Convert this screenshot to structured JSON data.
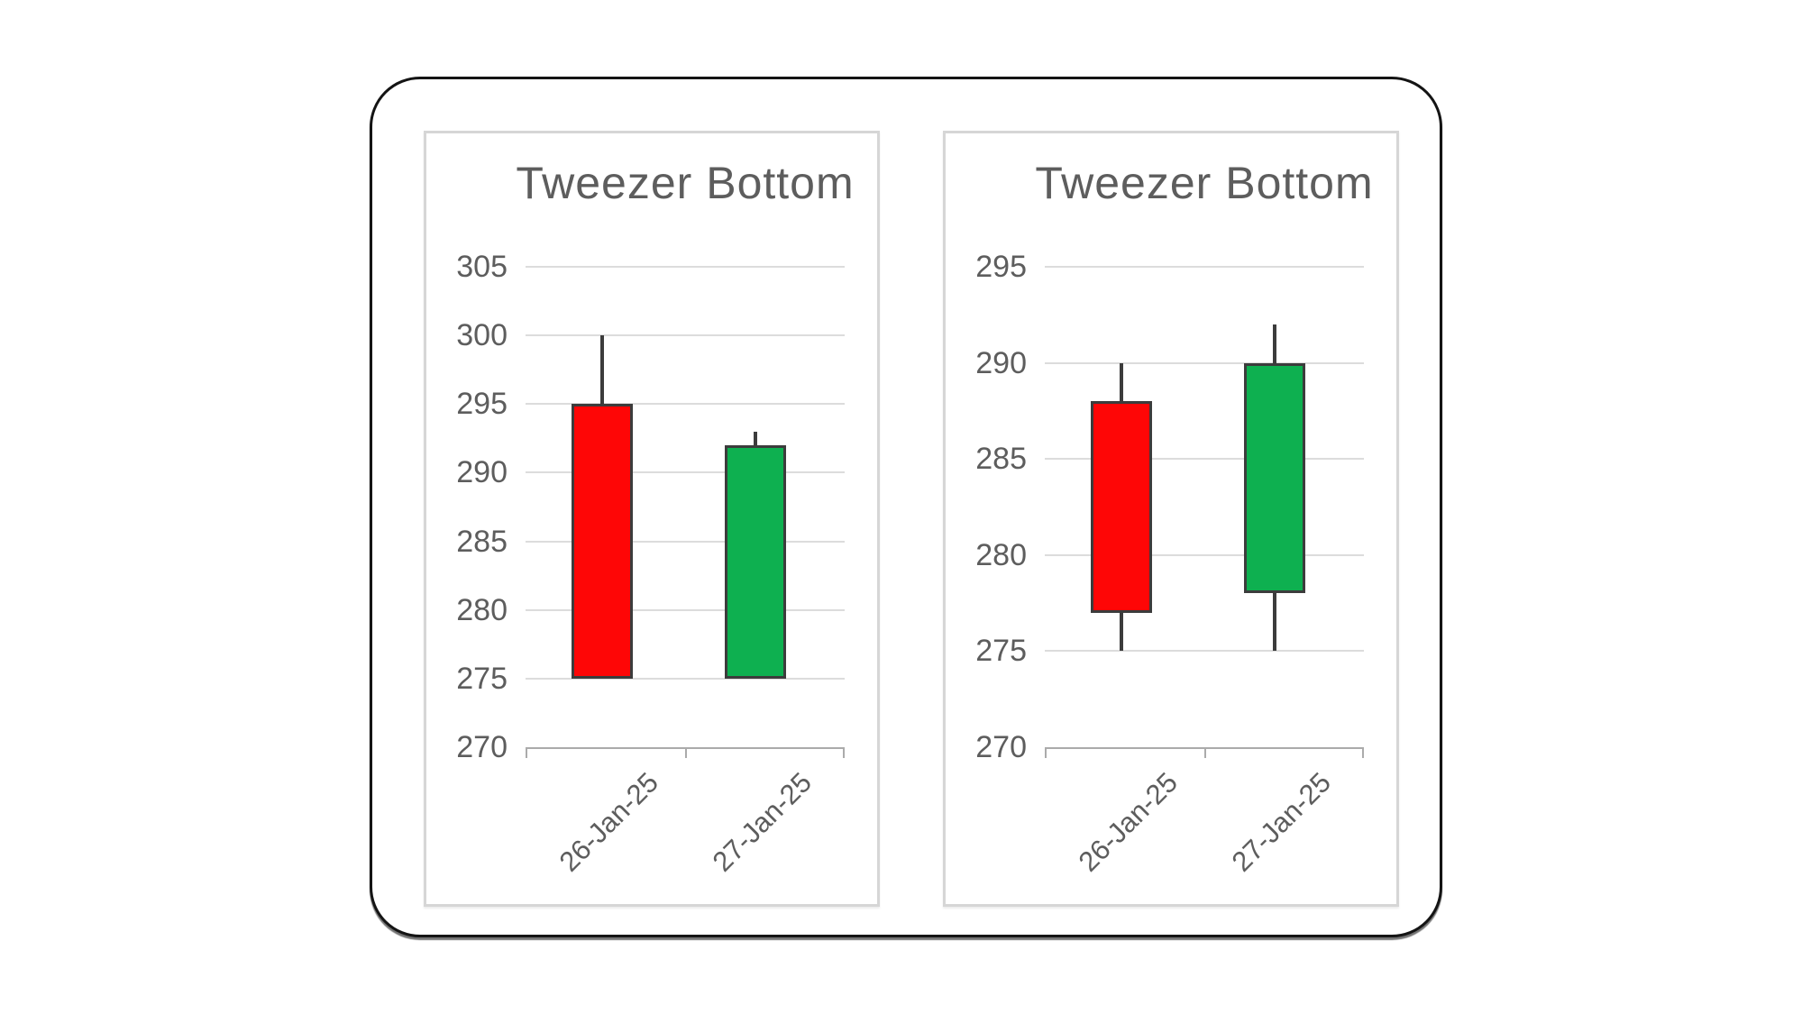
{
  "colors": {
    "bullish": "#0eb050",
    "bearish": "#fe0606",
    "candle_border": "#3c3c3c",
    "gridline": "#dcdcdc",
    "axis": "#ababab",
    "text": "#5d5d5d",
    "card_border": "#141414",
    "panel_border": "#d6d6d6",
    "background": "#ffffff"
  },
  "chart_data": [
    {
      "type": "candlestick",
      "title": "Tweezer Bottom",
      "categories": [
        "26-Jan-25",
        "27-Jan-25"
      ],
      "yticks": [
        305,
        300,
        295,
        290,
        285,
        280,
        275,
        270
      ],
      "ylim": [
        270,
        305
      ],
      "grid": true,
      "candles": [
        {
          "date": "26-Jan-25",
          "open": 295,
          "high": 300,
          "low": 275,
          "close": 275,
          "direction": "bearish"
        },
        {
          "date": "27-Jan-25",
          "open": 275,
          "high": 293,
          "low": 275,
          "close": 292,
          "direction": "bullish"
        }
      ]
    },
    {
      "type": "candlestick",
      "title": "Tweezer Bottom",
      "categories": [
        "26-Jan-25",
        "27-Jan-25"
      ],
      "yticks": [
        295,
        290,
        285,
        280,
        275,
        270
      ],
      "ylim": [
        270,
        295
      ],
      "grid": true,
      "candles": [
        {
          "date": "26-Jan-25",
          "open": 288,
          "high": 290,
          "low": 275,
          "close": 277,
          "direction": "bearish"
        },
        {
          "date": "27-Jan-25",
          "open": 278,
          "high": 292,
          "low": 275,
          "close": 290,
          "direction": "bullish"
        }
      ]
    }
  ]
}
